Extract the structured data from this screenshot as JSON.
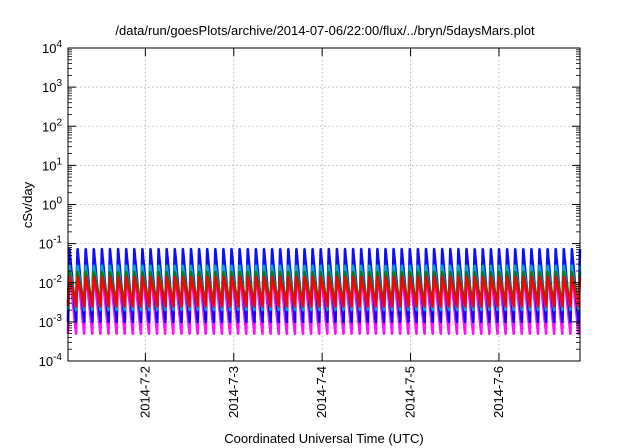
{
  "chart_data": {
    "type": "area",
    "title": "/data/run/goesPlots/archive/2014-07-06/22:00/flux/../bryn/5daysMars.plot",
    "xlabel": "Coordinated Universal Time (UTC)",
    "ylabel": "cSv/day",
    "yscale": "log",
    "ylim": [
      0.0001,
      10000
    ],
    "y_ticks": [
      {
        "base": "10",
        "exp": "-4",
        "value": 0.0001
      },
      {
        "base": "10",
        "exp": "-3",
        "value": 0.001
      },
      {
        "base": "10",
        "exp": "-2",
        "value": 0.01
      },
      {
        "base": "10",
        "exp": "-1",
        "value": 0.1
      },
      {
        "base": "10",
        "exp": "0",
        "value": 1
      },
      {
        "base": "10",
        "exp": "1",
        "value": 10
      },
      {
        "base": "10",
        "exp": "2",
        "value": 100
      },
      {
        "base": "10",
        "exp": "3",
        "value": 1000
      },
      {
        "base": "10",
        "exp": "4",
        "value": 10000
      }
    ],
    "xlim": [
      "2014-07-01 03:00",
      "2014-07-06 22:00"
    ],
    "x_ticks": [
      "2014-7-2",
      "2014-7-3",
      "2014-7-4",
      "2014-7-5",
      "2014-7-6"
    ],
    "grid": true,
    "oscillation_period_hours": 2.2,
    "series": [
      {
        "color": "#ff00ff",
        "min": 0.0005,
        "max": 0.025
      },
      {
        "color": "#0000ff",
        "min": 0.001,
        "max": 0.085
      },
      {
        "color": "#00b0c0",
        "min": 0.002,
        "max": 0.03
      },
      {
        "color": "#008000",
        "min": 0.003,
        "max": 0.02
      },
      {
        "color": "#ff0000",
        "min": 0.0025,
        "max": 0.015
      }
    ]
  }
}
